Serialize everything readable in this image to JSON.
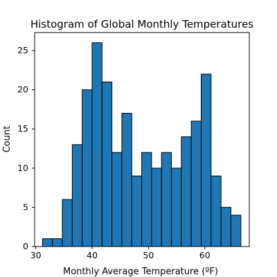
{
  "chart_data": {
    "type": "bar",
    "title": "Histogram of Global Monthly Temperatures",
    "xlabel": "Monthly Average Temperature (ºF)",
    "ylabel": "Count",
    "xlim": [
      29.8,
      67.9
    ],
    "ylim": [
      0,
      27.3
    ],
    "xticks": [
      30,
      40,
      50,
      60
    ],
    "yticks": [
      0,
      5,
      10,
      15,
      20,
      25
    ],
    "bin_edges": [
      31.2,
      32.96,
      34.72,
      36.48,
      38.24,
      40.0,
      41.76,
      43.52,
      45.28,
      47.04,
      48.8,
      50.56,
      52.32,
      54.08,
      55.84,
      57.6,
      59.36,
      61.12,
      62.88,
      64.64,
      66.4
    ],
    "values": [
      1,
      1,
      6,
      13,
      20,
      26,
      21,
      12,
      17,
      9,
      12,
      10,
      12,
      10,
      14,
      16,
      22,
      9,
      5,
      4
    ],
    "grid": false,
    "legend": "none"
  },
  "colors": {
    "bar_fill": "#1f77b4",
    "bar_edge": "#000000",
    "axis": "#000000"
  }
}
